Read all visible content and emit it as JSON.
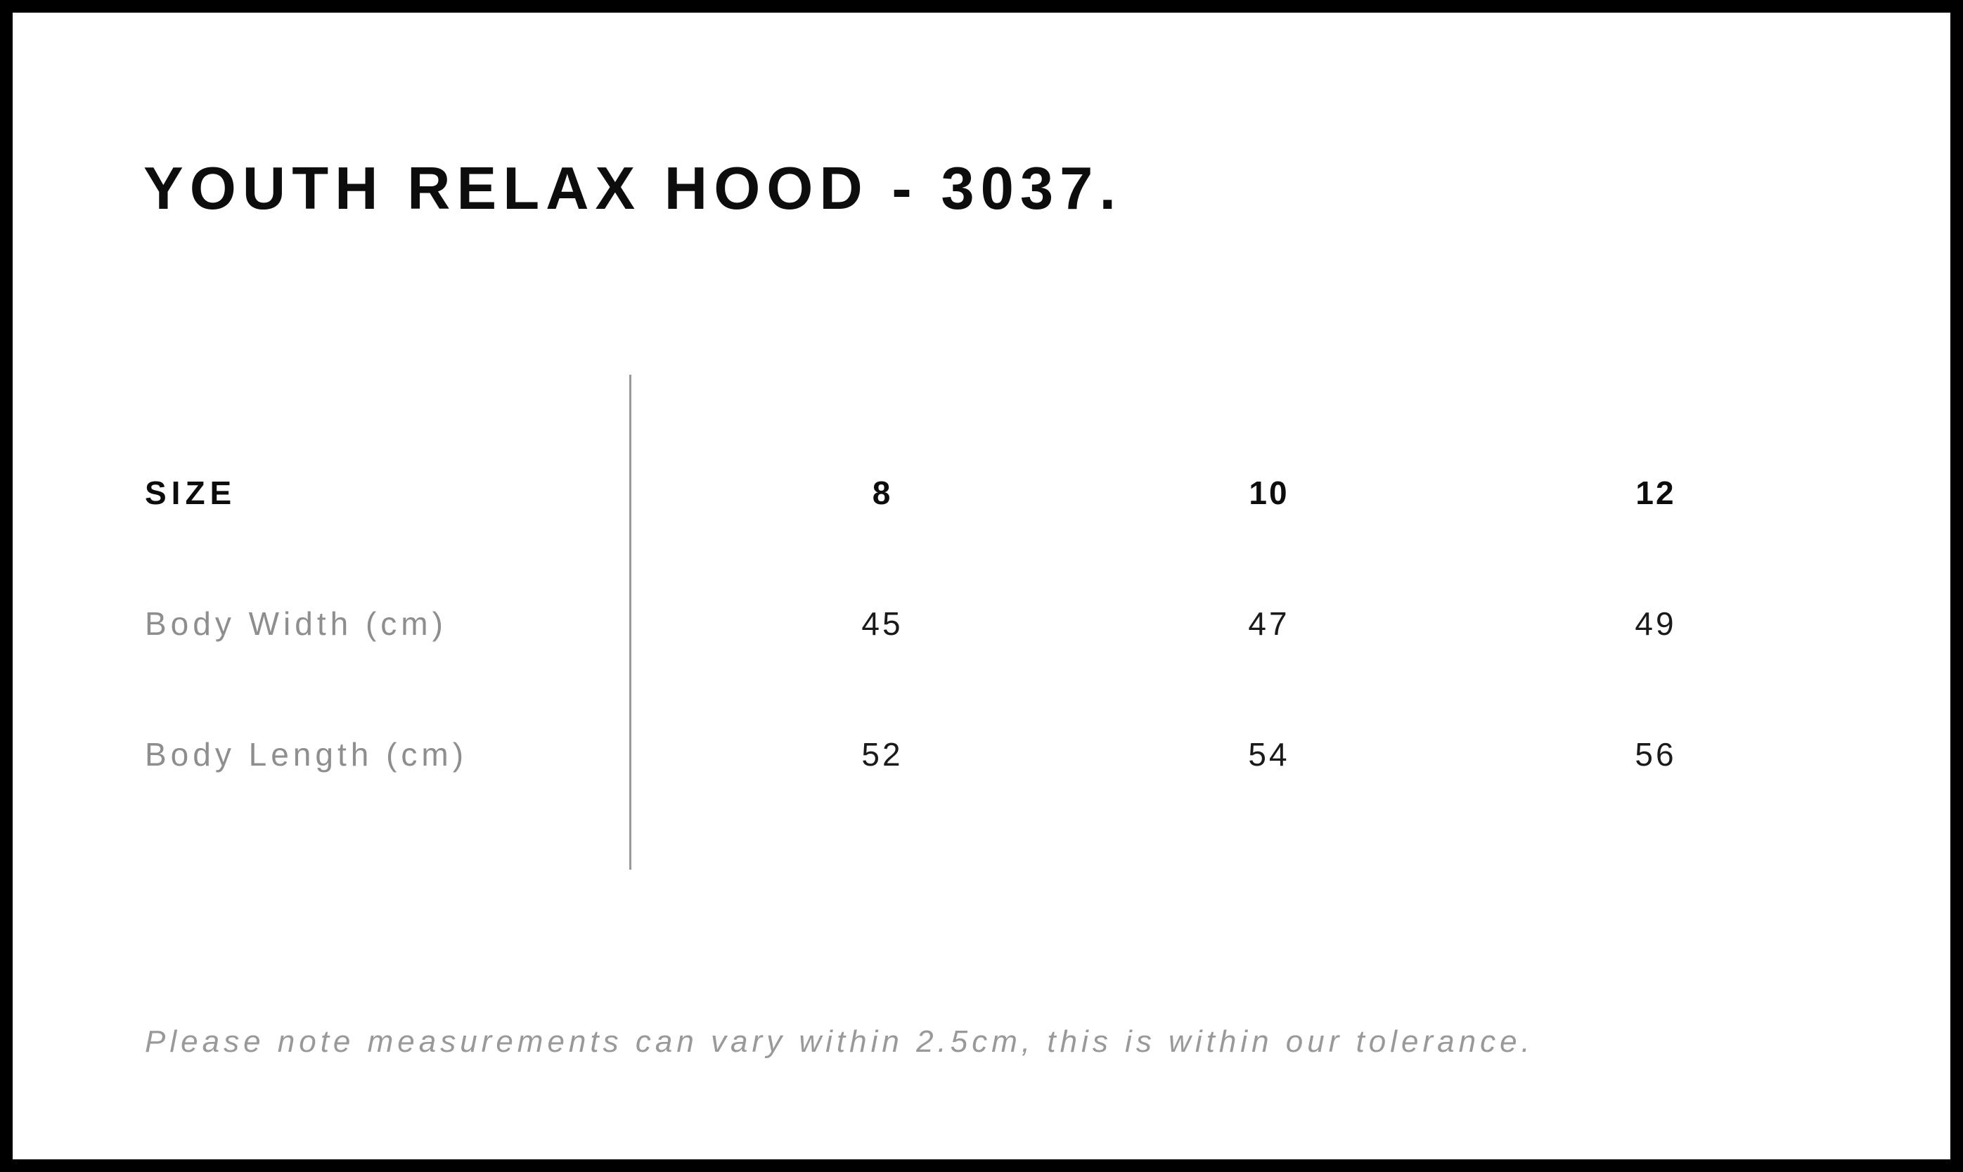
{
  "page": {
    "title": "YOUTH RELAX HOOD - 3037.",
    "note": "Please note measurements can vary within 2.5cm, this is within our tolerance."
  },
  "colors": {
    "border": "#000000",
    "title_text": "#0d0d0d",
    "value_text": "#1a1a1a",
    "muted_text": "#8e8e8e",
    "divider": "#999999",
    "background": "#ffffff"
  },
  "size_chart": {
    "header_label": "SIZE",
    "sizes": [
      "8",
      "10",
      "12"
    ],
    "rows": [
      {
        "label": "Body Width (cm)",
        "values": [
          "45",
          "47",
          "49"
        ]
      },
      {
        "label": "Body Length (cm)",
        "values": [
          "52",
          "54",
          "56"
        ]
      }
    ]
  },
  "chart_data": {
    "type": "table",
    "title": "YOUTH RELAX HOOD - 3037.",
    "columns": [
      "SIZE",
      "8",
      "10",
      "12"
    ],
    "rows": [
      [
        "Body Width (cm)",
        45,
        47,
        49
      ],
      [
        "Body Length (cm)",
        52,
        54,
        56
      ]
    ],
    "footnote": "Please note measurements can vary within 2.5cm, this is within our tolerance."
  }
}
